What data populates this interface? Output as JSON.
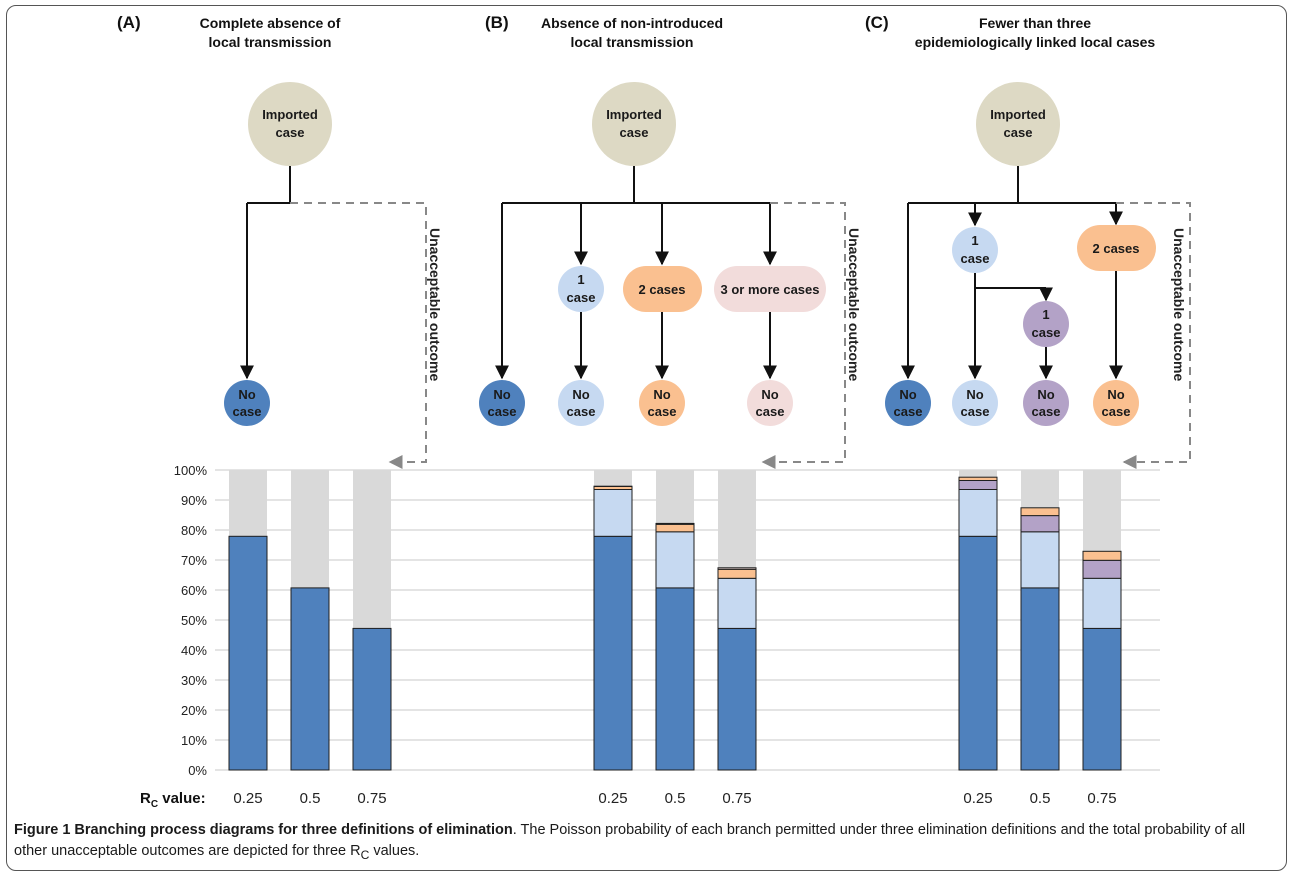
{
  "panels": [
    {
      "letter": "(A)",
      "title_line1": "Complete absence of",
      "title_line2": "local transmission"
    },
    {
      "letter": "(B)",
      "title_line1": "Absence of non-introduced",
      "title_line2": "local transmission"
    },
    {
      "letter": "(C)",
      "title_line1": "Fewer than three",
      "title_line2": "epidemiologically linked local cases"
    }
  ],
  "nodes": {
    "imported_line1": "Imported",
    "imported_line2": "case",
    "one": "1",
    "case": "case",
    "two_cases": "2 cases",
    "three_or_more": "3 or more cases",
    "no": "No"
  },
  "side_label": "Unacceptable outcome",
  "rc_label": "R",
  "rc_sub": "C",
  "rc_suffix": " value:",
  "colors": {
    "no_case": "#4f81bd",
    "one_case": "#c6d9f1",
    "two_cases": "#fac090",
    "three_cases": "#f2dcdb",
    "linked_case": "#b3a2c7",
    "imported": "#ddd9c4",
    "unacceptable": "#d9d9d9"
  },
  "chart_data": {
    "type": "bar",
    "stacked": true,
    "ylim": [
      0,
      100
    ],
    "yticks": [
      "0%",
      "10%",
      "20%",
      "30%",
      "40%",
      "50%",
      "60%",
      "70%",
      "80%",
      "90%",
      "100%"
    ],
    "groups": [
      {
        "panel": "A",
        "categories": [
          "0.25",
          "0.5",
          "0.75"
        ],
        "series": [
          {
            "color_key": "no_case",
            "values": [
              77.9,
              60.7,
              47.2
            ]
          }
        ]
      },
      {
        "panel": "B",
        "categories": [
          "0.25",
          "0.5",
          "0.75"
        ],
        "series": [
          {
            "color_key": "no_case",
            "values": [
              77.9,
              60.7,
              47.2
            ]
          },
          {
            "color_key": "one_case",
            "values": [
              15.6,
              18.7,
              16.7
            ]
          },
          {
            "color_key": "two_cases",
            "values": [
              1.0,
              2.5,
              3.0
            ]
          },
          {
            "color_key": "three_cases",
            "values": [
              0.1,
              0.3,
              0.5
            ]
          }
        ]
      },
      {
        "panel": "C",
        "categories": [
          "0.25",
          "0.5",
          "0.75"
        ],
        "series": [
          {
            "color_key": "no_case",
            "values": [
              77.9,
              60.7,
              47.2
            ]
          },
          {
            "color_key": "one_case",
            "values": [
              15.6,
              18.7,
              16.7
            ]
          },
          {
            "color_key": "linked_case",
            "values": [
              3.0,
              5.4,
              6.0
            ]
          },
          {
            "color_key": "two_cases",
            "values": [
              1.1,
              2.6,
              3.0
            ]
          }
        ]
      }
    ]
  },
  "caption": {
    "title": "Figure 1 Branching process diagrams for three definitions of elimination",
    "text_before_sub": ". The Poisson probability of each branch permitted under three elimination definitions and the total probability of all other unacceptable outcomes are depicted for three R",
    "sub": "C",
    "text_after_sub": " values."
  }
}
